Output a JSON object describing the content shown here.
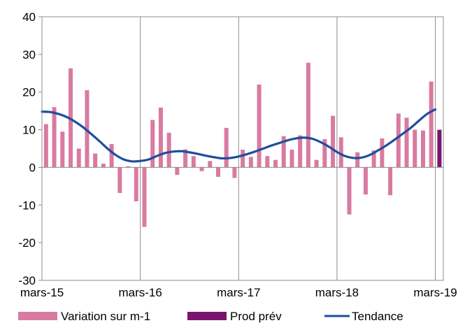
{
  "chart_data": {
    "type": "bar",
    "title": "",
    "xlabel": "",
    "ylabel": "",
    "ylim": [
      -30,
      40
    ],
    "yticks": [
      -30,
      -20,
      -10,
      0,
      10,
      20,
      30,
      40
    ],
    "xtick_labels": [
      "mars-15",
      "mars-16",
      "mars-17",
      "mars-18",
      "mars-19"
    ],
    "grid": "vertical lines at each march",
    "legend_position": "bottom",
    "legend": [
      {
        "label": "Variation sur m-1",
        "color": "#d97aa1",
        "kind": "bar"
      },
      {
        "label": "Prod prév",
        "color": "#7b1470",
        "kind": "bar"
      },
      {
        "label": "Tendance",
        "color": "#1f4e9c",
        "kind": "line"
      }
    ],
    "series": [
      {
        "name": "Variation sur m-1",
        "color": "#d97aa1",
        "values": [
          11.5,
          16,
          9.5,
          26.3,
          5,
          20.5,
          3.7,
          1,
          6.2,
          -6.8,
          0.3,
          -9,
          -15.8,
          12.6,
          15.9,
          9.2,
          -2,
          4.8,
          3,
          -1,
          1.7,
          -2.5,
          10.5,
          -2.8,
          4.7,
          2.8,
          22,
          3,
          2,
          8.3,
          4.7,
          8.5,
          27.8,
          2,
          7.5,
          13.7,
          8,
          -12.5,
          4,
          -7.2,
          4.5,
          7.7,
          -7.4,
          14.3,
          13.2,
          10,
          9.8,
          22.8
        ]
      },
      {
        "name": "Prod prév",
        "color": "#7b1470",
        "values": [
          null,
          null,
          null,
          null,
          null,
          null,
          null,
          null,
          null,
          null,
          null,
          null,
          null,
          null,
          null,
          null,
          null,
          null,
          null,
          null,
          null,
          null,
          null,
          null,
          null,
          null,
          null,
          null,
          null,
          null,
          null,
          null,
          null,
          null,
          null,
          null,
          null,
          null,
          null,
          null,
          null,
          null,
          null,
          null,
          null,
          null,
          null,
          null,
          10
        ]
      },
      {
        "name": "Tendance",
        "color": "#1f4e9c",
        "type": "line",
        "values": [
          14.8,
          14.7,
          14.2,
          13.4,
          12.2,
          10.7,
          8.9,
          7.0,
          5.0,
          3.3,
          2.1,
          1.6,
          1.7,
          2.1,
          3.0,
          3.8,
          4.2,
          4.3,
          4.0,
          3.6,
          3.1,
          2.7,
          2.4,
          2.5,
          2.9,
          3.5,
          4.2,
          5.0,
          5.8,
          6.5,
          7.2,
          7.7,
          7.9,
          7.6,
          6.7,
          5.5,
          4.1,
          3.0,
          2.5,
          2.6,
          3.3,
          4.5,
          5.8,
          7.3,
          8.9,
          10.5,
          12.4,
          14.2,
          15.4
        ]
      }
    ]
  }
}
